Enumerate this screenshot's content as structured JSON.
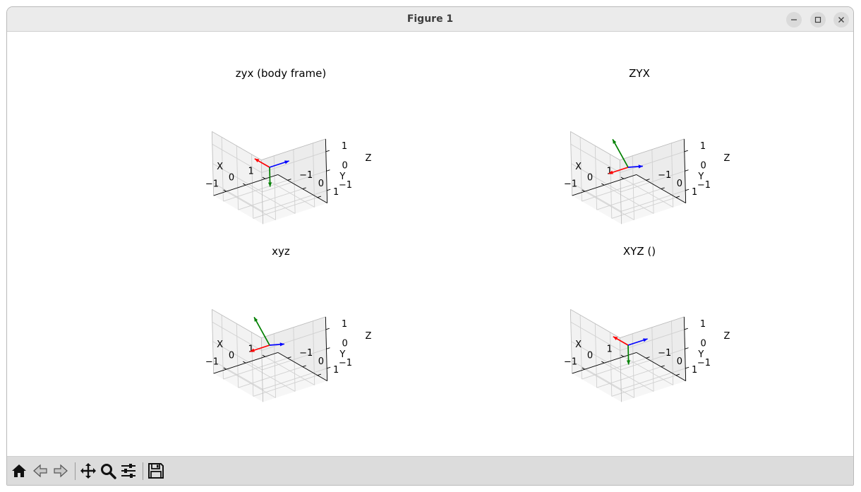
{
  "window": {
    "title": "Figure 1"
  },
  "window_controls": [
    "minimize-icon",
    "maximize-icon",
    "close-icon"
  ],
  "toolbar": [
    "home-icon",
    "back-icon",
    "forward-icon",
    "pan-icon",
    "zoom-icon",
    "configure-subplots-icon",
    "save-icon"
  ],
  "arrow_colors": {
    "x": "#ff0000",
    "y": "#008000",
    "z": "#0000ff"
  },
  "chart_data": [
    {
      "type": "3d-quiver",
      "title": "zyx (body frame)",
      "xlabel": "X",
      "ylabel": "Y",
      "zlabel": "Z",
      "xticks": [
        "−1",
        "0",
        "1"
      ],
      "yticks": [
        "−1",
        "0",
        "1"
      ],
      "zticks": [
        "1",
        "0",
        "−1"
      ],
      "xlim": [
        -1.5,
        1.5
      ],
      "ylim": [
        -1.5,
        1.5
      ],
      "zlim": [
        -1.5,
        1.5
      ],
      "grid": true,
      "vectors": [
        {
          "axis": "x",
          "color": "#ff0000",
          "dir": [
            0,
            -1,
            0
          ]
        },
        {
          "axis": "y",
          "color": "#008000",
          "dir": [
            0,
            0,
            -1
          ]
        },
        {
          "axis": "z",
          "color": "#0000ff",
          "dir": [
            1,
            0,
            0
          ]
        }
      ]
    },
    {
      "type": "3d-quiver",
      "title": "ZYX",
      "xlabel": "X",
      "ylabel": "Y",
      "zlabel": "Z",
      "xticks": [
        "−1",
        "0",
        "1"
      ],
      "yticks": [
        "−1",
        "0",
        "1"
      ],
      "zticks": [
        "1",
        "0",
        "−1"
      ],
      "xlim": [
        -1.5,
        1.5
      ],
      "ylim": [
        -1.5,
        1.5
      ],
      "zlim": [
        -1.5,
        1.5
      ],
      "grid": true,
      "vectors": [
        {
          "axis": "x",
          "color": "#ff0000",
          "dir": [
            -1,
            0,
            0
          ]
        },
        {
          "axis": "y",
          "color": "#008000",
          "dir": [
            0,
            -1,
            1
          ]
        },
        {
          "axis": "z",
          "color": "#0000ff",
          "dir": [
            0,
            1,
            0.5
          ]
        }
      ]
    },
    {
      "type": "3d-quiver",
      "title": "xyz",
      "xlabel": "X",
      "ylabel": "Y",
      "zlabel": "Z",
      "xticks": [
        "−1",
        "0",
        "1"
      ],
      "yticks": [
        "−1",
        "0",
        "1"
      ],
      "zticks": [
        "1",
        "0",
        "−1"
      ],
      "xlim": [
        -1.5,
        1.5
      ],
      "ylim": [
        -1.5,
        1.5
      ],
      "zlim": [
        -1.5,
        1.5
      ],
      "grid": true,
      "vectors": [
        {
          "axis": "x",
          "color": "#ff0000",
          "dir": [
            -1,
            0,
            0
          ]
        },
        {
          "axis": "y",
          "color": "#008000",
          "dir": [
            0,
            -1,
            1
          ]
        },
        {
          "axis": "z",
          "color": "#0000ff",
          "dir": [
            0,
            1,
            0.5
          ]
        }
      ]
    },
    {
      "type": "3d-quiver",
      "title": "XYZ ()",
      "xlabel": "X",
      "ylabel": "Y",
      "zlabel": "Z",
      "xticks": [
        "−1",
        "0",
        "1"
      ],
      "yticks": [
        "−1",
        "0",
        "1"
      ],
      "zticks": [
        "1",
        "0",
        "−1"
      ],
      "xlim": [
        -1.5,
        1.5
      ],
      "ylim": [
        -1.5,
        1.5
      ],
      "zlim": [
        -1.5,
        1.5
      ],
      "grid": true,
      "vectors": [
        {
          "axis": "x",
          "color": "#ff0000",
          "dir": [
            0,
            -1,
            0
          ]
        },
        {
          "axis": "y",
          "color": "#008000",
          "dir": [
            0,
            0,
            -1
          ]
        },
        {
          "axis": "z",
          "color": "#0000ff",
          "dir": [
            1,
            0,
            0
          ]
        }
      ]
    }
  ]
}
